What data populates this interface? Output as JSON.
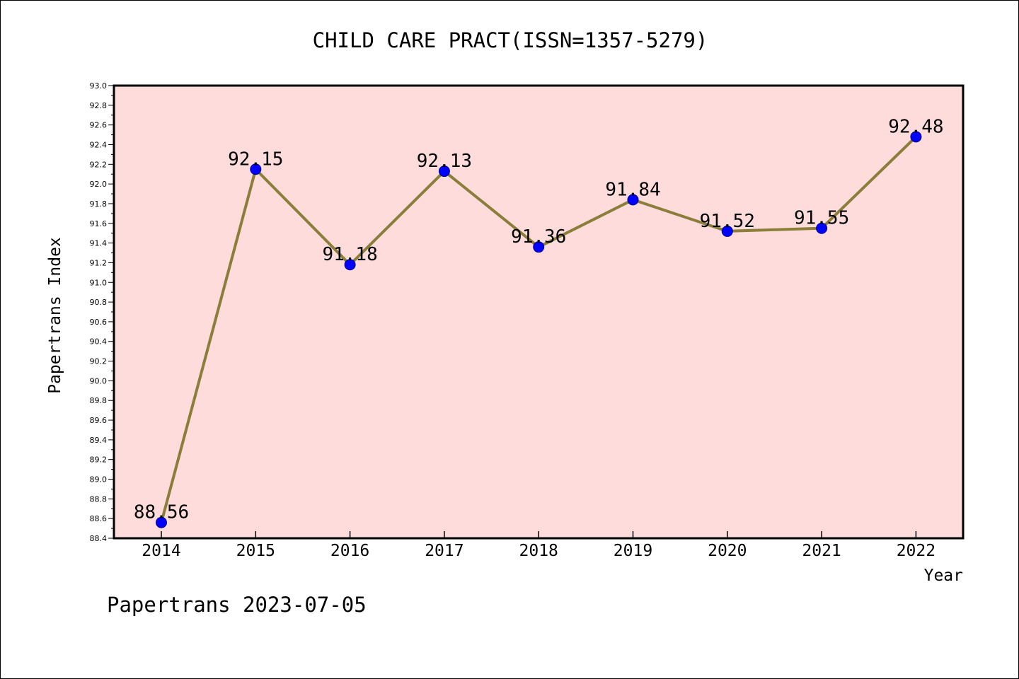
{
  "chart_data": {
    "type": "line",
    "title": "CHILD CARE PRACT(ISSN=1357-5279)",
    "xlabel": "Year",
    "ylabel": "Papertrans Index",
    "categories": [
      "2014",
      "2015",
      "2016",
      "2017",
      "2018",
      "2019",
      "2020",
      "2021",
      "2022"
    ],
    "series": [
      {
        "values": [
          88.56,
          92.15,
          91.18,
          92.13,
          91.36,
          91.84,
          91.52,
          91.55,
          92.48
        ],
        "labels": [
          "88.56",
          "92.15",
          "91.18",
          "92.13",
          "91.36",
          "91.84",
          "91.52",
          "91.55",
          "92.48"
        ],
        "line_color": "#8b7d3a",
        "marker_color": "#0000ff"
      }
    ],
    "ylim": [
      88.4,
      93.0
    ],
    "yticks": [
      "88.4",
      "88.6",
      "88.8",
      "89.0",
      "89.2",
      "89.4",
      "89.6",
      "89.8",
      "90.0",
      "90.2",
      "90.4",
      "90.6",
      "90.8",
      "91.0",
      "91.2",
      "91.4",
      "91.6",
      "91.8",
      "92.0",
      "92.2",
      "92.4",
      "92.6",
      "92.8",
      "93.0"
    ],
    "plot_background": "#fddcdb",
    "grid": false,
    "footer": "Papertrans 2023-07-05"
  }
}
